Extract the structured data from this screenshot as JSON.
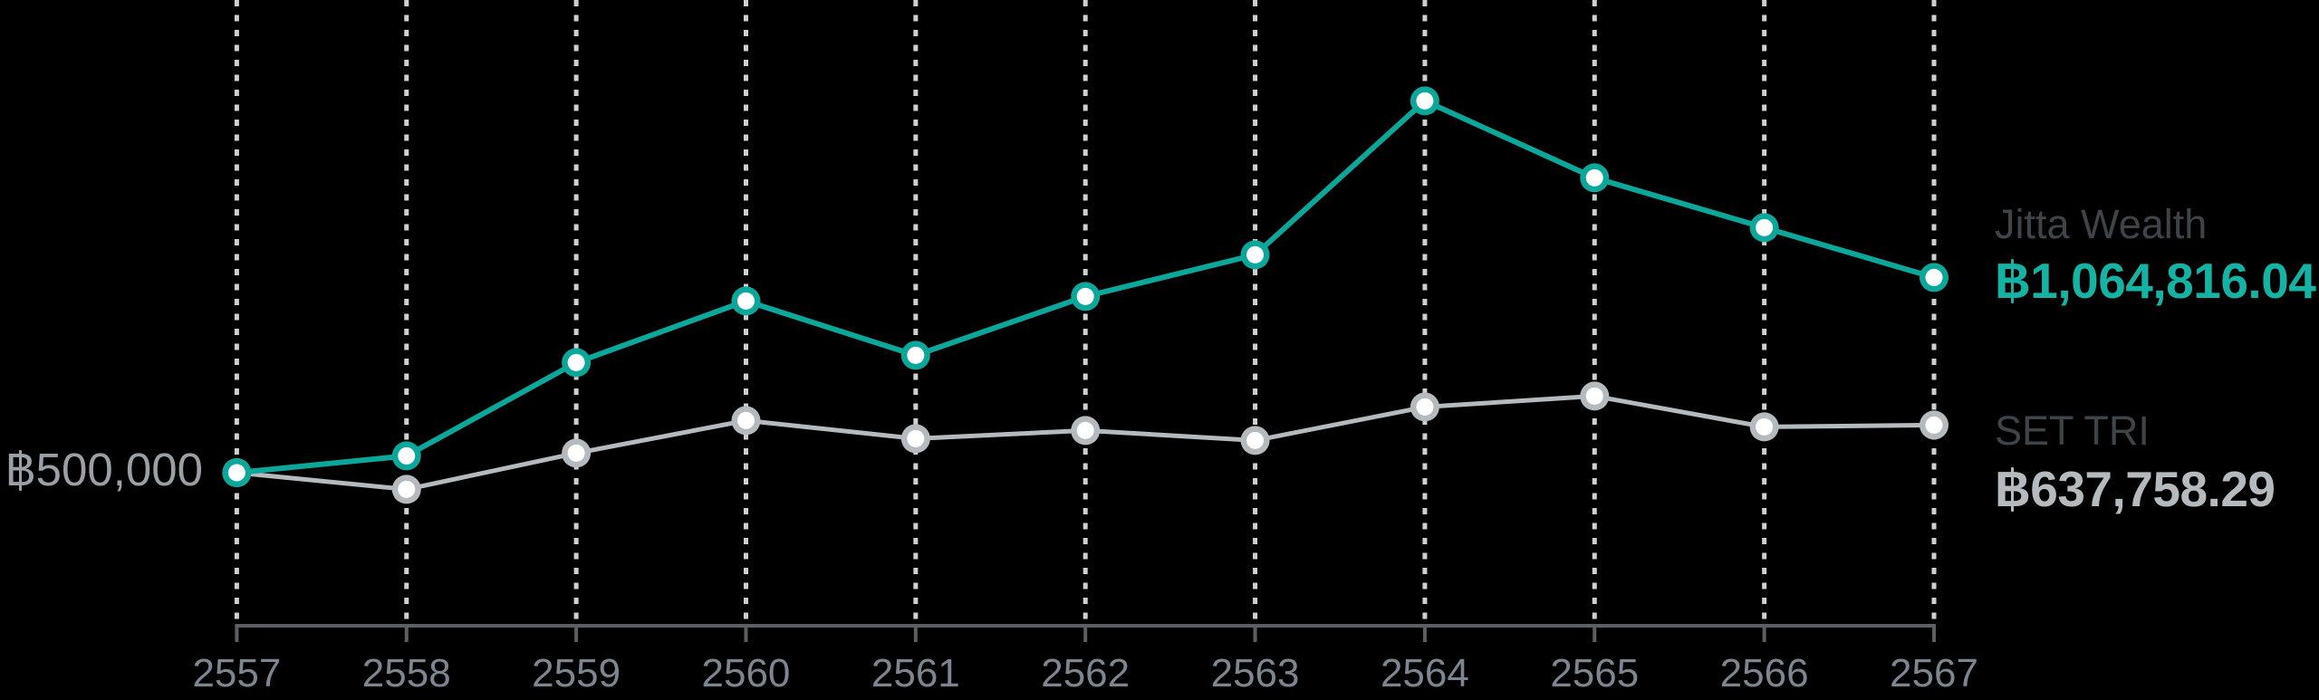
{
  "chart_data": {
    "type": "line",
    "title": "",
    "xlabel": "",
    "ylabel": "",
    "categories": [
      "2557",
      "2558",
      "2559",
      "2560",
      "2561",
      "2562",
      "2563",
      "2564",
      "2565",
      "2566",
      "2567"
    ],
    "series": [
      {
        "name": "Jitta Wealth",
        "color": "#0ba79a",
        "values": [
          500000,
          548700,
          818600,
          996800,
          839600,
          1009900,
          1130400,
          1575800,
          1353100,
          1209000,
          1064816.04
        ],
        "final_value_label": "฿1,064,816.04"
      },
      {
        "name": "SET TRI",
        "color": "#b5babe",
        "values": [
          500000,
          451800,
          556600,
          650900,
          598500,
          622100,
          593300,
          690200,
          721650,
          632600,
          637758.29
        ],
        "final_value_label": "฿637,758.29"
      }
    ],
    "y_axis": {
      "baseline_label": "฿500,000",
      "baseline_value": 500000
    },
    "grid": "vertical-dashed",
    "legend_position": "right"
  },
  "legend": {
    "jitta": {
      "label": "Jitta Wealth",
      "value": "฿1,064,816.04"
    },
    "set_tri": {
      "label": "SET TRI",
      "value": "฿637,758.29"
    }
  },
  "colors": {
    "background": "#000000",
    "teal_line": "#0ba79a",
    "teal_value_text": "#14b3a3",
    "gray_line": "#b5babe",
    "gray_value_text": "#b5babe",
    "legend_name_text": "#3e4549",
    "year_label_text": "#7b8691",
    "baseline_label_text": "#9aa0a6",
    "axis_line": "#5b5e62",
    "gridline": "#cfcfcf",
    "point_core": "#ffffff"
  }
}
